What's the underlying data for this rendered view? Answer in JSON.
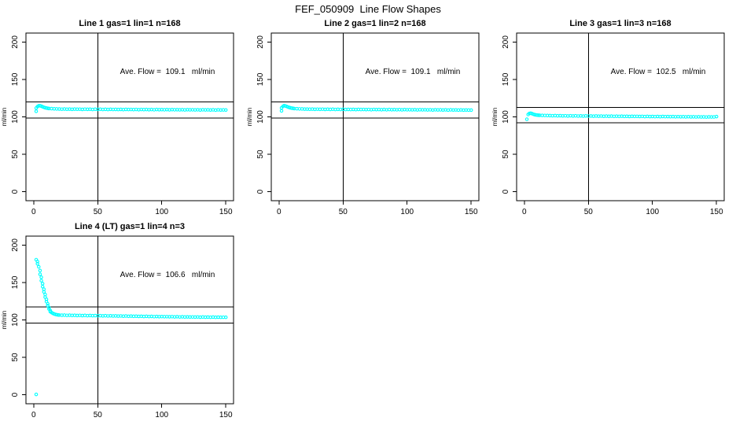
{
  "title": "FEF_050909  Line Flow Shapes",
  "colors": {
    "point": "#00FFFF",
    "axis": "#000000",
    "background": "#FFFFFF"
  },
  "chart_data": [
    {
      "type": "scatter",
      "title": "Line 1 gas=1 lin=1 n=168",
      "line": "Line 1",
      "gas": 1,
      "lin": 1,
      "n": 168,
      "annotation": "Ave. Flow =  109.1   ml/min",
      "ave_flow_ml_min": 109.1,
      "ylabel": "ml/min",
      "x_ticks": [
        0,
        50,
        100,
        150
      ],
      "y_ticks": [
        0,
        50,
        100,
        150,
        200
      ],
      "xlim": [
        -6,
        156
      ],
      "ylim": [
        -12,
        212
      ],
      "vline": 50,
      "hlines": [
        120.0,
        98.2
      ],
      "grid": false,
      "legend": null,
      "points": [
        [
          2,
          107.5
        ],
        [
          2,
          111.8
        ],
        [
          3,
          113.8
        ],
        [
          4,
          114.8
        ],
        [
          5,
          114.9
        ],
        [
          6,
          114.3
        ],
        [
          7,
          113.5
        ],
        [
          8,
          112.8
        ],
        [
          9,
          112.2
        ],
        [
          10,
          111.8
        ],
        [
          11,
          111.5
        ],
        [
          12,
          111.2
        ],
        [
          14,
          111
        ],
        [
          16,
          110.8
        ],
        [
          18,
          110.6
        ],
        [
          20,
          110.5
        ],
        [
          22,
          110.3
        ],
        [
          24,
          110.5
        ],
        [
          26,
          110.2
        ],
        [
          28,
          110.4
        ],
        [
          30,
          110.1
        ],
        [
          32,
          110.4
        ],
        [
          34,
          110.2
        ],
        [
          36,
          110.3
        ],
        [
          38,
          110
        ],
        [
          40,
          110.3
        ],
        [
          42,
          110.1
        ],
        [
          44,
          110.2
        ],
        [
          46,
          109.9
        ],
        [
          48,
          110.2
        ],
        [
          50,
          110
        ],
        [
          52,
          110.2
        ],
        [
          54,
          109.9
        ],
        [
          56,
          110.1
        ],
        [
          58,
          109.8
        ],
        [
          60,
          110.1
        ],
        [
          62,
          109.9
        ],
        [
          64,
          110
        ],
        [
          66,
          109.8
        ],
        [
          68,
          110
        ],
        [
          70,
          109.7
        ],
        [
          72,
          110
        ],
        [
          74,
          109.8
        ],
        [
          76,
          109.9
        ],
        [
          78,
          109.7
        ],
        [
          80,
          109.9
        ],
        [
          82,
          109.6
        ],
        [
          84,
          109.9
        ],
        [
          86,
          109.7
        ],
        [
          88,
          109.8
        ],
        [
          90,
          109.6
        ],
        [
          92,
          109.8
        ],
        [
          94,
          109.5
        ],
        [
          96,
          109.8
        ],
        [
          98,
          109.6
        ],
        [
          100,
          109.7
        ],
        [
          102,
          109.5
        ],
        [
          104,
          109.7
        ],
        [
          106,
          109.4
        ],
        [
          108,
          109.7
        ],
        [
          110,
          109.5
        ],
        [
          112,
          109.6
        ],
        [
          114,
          109.4
        ],
        [
          116,
          109.6
        ],
        [
          118,
          109.3
        ],
        [
          120,
          109.6
        ],
        [
          122,
          109.4
        ],
        [
          124,
          109.5
        ],
        [
          126,
          109.3
        ],
        [
          128,
          109.5
        ],
        [
          130,
          109.2
        ],
        [
          132,
          109.5
        ],
        [
          134,
          109.3
        ],
        [
          136,
          109.4
        ],
        [
          138,
          109.2
        ],
        [
          140,
          109.4
        ],
        [
          142,
          109.1
        ],
        [
          144,
          109.4
        ],
        [
          146,
          109.2
        ],
        [
          148,
          109.3
        ],
        [
          150,
          109.2
        ]
      ]
    },
    {
      "type": "scatter",
      "title": "Line 2 gas=1 lin=2 n=168",
      "line": "Line 2",
      "gas": 1,
      "lin": 2,
      "n": 168,
      "annotation": "Ave. Flow =  109.1   ml/min",
      "ave_flow_ml_min": 109.1,
      "ylabel": "ml/min",
      "x_ticks": [
        0,
        50,
        100,
        150
      ],
      "y_ticks": [
        0,
        50,
        100,
        150,
        200
      ],
      "xlim": [
        -6,
        156
      ],
      "ylim": [
        -12,
        212
      ],
      "vline": 50,
      "hlines": [
        120.0,
        98.2
      ],
      "grid": false,
      "legend": null,
      "points": [
        [
          2,
          108
        ],
        [
          2,
          112
        ],
        [
          3,
          114
        ],
        [
          4,
          115
        ],
        [
          5,
          114.6
        ],
        [
          6,
          114
        ],
        [
          7,
          113.2
        ],
        [
          8,
          112.6
        ],
        [
          9,
          112.1
        ],
        [
          10,
          111.7
        ],
        [
          11,
          111.4
        ],
        [
          12,
          111.1
        ],
        [
          14,
          110.9
        ],
        [
          16,
          110.7
        ],
        [
          18,
          110.6
        ],
        [
          20,
          110.4
        ],
        [
          22,
          110.4
        ],
        [
          24,
          110.2
        ],
        [
          26,
          110.4
        ],
        [
          28,
          110.1
        ],
        [
          30,
          110.3
        ],
        [
          32,
          110.1
        ],
        [
          34,
          110.3
        ],
        [
          36,
          110
        ],
        [
          38,
          110.2
        ],
        [
          40,
          110
        ],
        [
          42,
          110.2
        ],
        [
          44,
          109.9
        ],
        [
          46,
          110.1
        ],
        [
          48,
          109.9
        ],
        [
          50,
          110.1
        ],
        [
          52,
          109.8
        ],
        [
          54,
          110
        ],
        [
          56,
          109.8
        ],
        [
          58,
          110
        ],
        [
          60,
          109.7
        ],
        [
          62,
          110
        ],
        [
          64,
          109.8
        ],
        [
          66,
          109.9
        ],
        [
          68,
          109.7
        ],
        [
          70,
          109.9
        ],
        [
          72,
          109.6
        ],
        [
          74,
          109.9
        ],
        [
          76,
          109.7
        ],
        [
          78,
          109.8
        ],
        [
          80,
          109.6
        ],
        [
          82,
          109.8
        ],
        [
          84,
          109.5
        ],
        [
          86,
          109.8
        ],
        [
          88,
          109.6
        ],
        [
          90,
          109.7
        ],
        [
          92,
          109.5
        ],
        [
          94,
          109.7
        ],
        [
          96,
          109.4
        ],
        [
          98,
          109.7
        ],
        [
          100,
          109.5
        ],
        [
          102,
          109.6
        ],
        [
          104,
          109.4
        ],
        [
          106,
          109.6
        ],
        [
          108,
          109.3
        ],
        [
          110,
          109.6
        ],
        [
          112,
          109.4
        ],
        [
          114,
          109.5
        ],
        [
          116,
          109.3
        ],
        [
          118,
          109.5
        ],
        [
          120,
          109.2
        ],
        [
          122,
          109.5
        ],
        [
          124,
          109.3
        ],
        [
          126,
          109.4
        ],
        [
          128,
          109.2
        ],
        [
          130,
          109.4
        ],
        [
          132,
          109.1
        ],
        [
          134,
          109.4
        ],
        [
          136,
          109.2
        ],
        [
          138,
          109.3
        ],
        [
          140,
          109.1
        ],
        [
          142,
          109.3
        ],
        [
          144,
          109.1
        ],
        [
          146,
          109.2
        ],
        [
          148,
          109.1
        ],
        [
          150,
          109.1
        ]
      ]
    },
    {
      "type": "scatter",
      "title": "Line 3 gas=1 lin=3 n=168",
      "line": "Line 3",
      "gas": 1,
      "lin": 3,
      "n": 168,
      "annotation": "Ave. Flow =  102.5   ml/min",
      "ave_flow_ml_min": 102.5,
      "ylabel": "ml/min",
      "x_ticks": [
        0,
        50,
        100,
        150
      ],
      "y_ticks": [
        0,
        50,
        100,
        150,
        200
      ],
      "xlim": [
        -6,
        156
      ],
      "ylim": [
        -12,
        212
      ],
      "vline": 50,
      "hlines": [
        112.8,
        92.3
      ],
      "grid": false,
      "legend": null,
      "points": [
        [
          2,
          96.8
        ],
        [
          3,
          103.2
        ],
        [
          4,
          104.6
        ],
        [
          5,
          104.9
        ],
        [
          6,
          104.3
        ],
        [
          7,
          103.6
        ],
        [
          8,
          103
        ],
        [
          9,
          102.6
        ],
        [
          10,
          102.4
        ],
        [
          11,
          102.2
        ],
        [
          12,
          102.1
        ],
        [
          14,
          102
        ],
        [
          16,
          101.9
        ],
        [
          18,
          101.8
        ],
        [
          20,
          101.7
        ],
        [
          22,
          101.5
        ],
        [
          24,
          101.7
        ],
        [
          26,
          101.4
        ],
        [
          28,
          101.6
        ],
        [
          30,
          101.3
        ],
        [
          32,
          101.5
        ],
        [
          34,
          101.2
        ],
        [
          36,
          101.5
        ],
        [
          38,
          101.2
        ],
        [
          40,
          101.4
        ],
        [
          42,
          101.1
        ],
        [
          44,
          101.3
        ],
        [
          46,
          101
        ],
        [
          48,
          101.3
        ],
        [
          50,
          101.1
        ],
        [
          52,
          101.2
        ],
        [
          54,
          100.9
        ],
        [
          56,
          101.2
        ],
        [
          58,
          100.9
        ],
        [
          60,
          101.1
        ],
        [
          62,
          100.8
        ],
        [
          64,
          101
        ],
        [
          66,
          100.8
        ],
        [
          68,
          101
        ],
        [
          70,
          100.7
        ],
        [
          72,
          100.9
        ],
        [
          74,
          100.7
        ],
        [
          76,
          100.9
        ],
        [
          78,
          100.6
        ],
        [
          80,
          100.8
        ],
        [
          82,
          100.5
        ],
        [
          84,
          100.8
        ],
        [
          86,
          100.6
        ],
        [
          88,
          100.7
        ],
        [
          90,
          100.5
        ],
        [
          92,
          100.7
        ],
        [
          94,
          100.4
        ],
        [
          96,
          100.6
        ],
        [
          98,
          100.4
        ],
        [
          100,
          100.5
        ],
        [
          102,
          100.3
        ],
        [
          104,
          100.5
        ],
        [
          106,
          100.2
        ],
        [
          108,
          100.5
        ],
        [
          110,
          100.3
        ],
        [
          112,
          100.4
        ],
        [
          114,
          100.2
        ],
        [
          116,
          100.4
        ],
        [
          118,
          100.1
        ],
        [
          120,
          100.3
        ],
        [
          122,
          100.1
        ],
        [
          124,
          100.2
        ],
        [
          126,
          100
        ],
        [
          128,
          100.2
        ],
        [
          130,
          100
        ],
        [
          132,
          100.1
        ],
        [
          134,
          99.9
        ],
        [
          136,
          100.1
        ],
        [
          138,
          99.9
        ],
        [
          140,
          100
        ],
        [
          142,
          99.8
        ],
        [
          144,
          100
        ],
        [
          146,
          99.9
        ],
        [
          148,
          99.9
        ],
        [
          150,
          100.4
        ]
      ]
    },
    {
      "type": "scatter",
      "title": "Line 4 (LT) gas=1 lin=4 n=3",
      "line": "Line 4 (LT)",
      "gas": 1,
      "lin": 4,
      "n": 3,
      "annotation": "Ave. Flow =  106.6   ml/min",
      "ave_flow_ml_min": 106.6,
      "ylabel": "ml/min",
      "x_ticks": [
        0,
        50,
        100,
        150
      ],
      "y_ticks": [
        0,
        50,
        100,
        150,
        200
      ],
      "xlim": [
        -6,
        156
      ],
      "ylim": [
        -12,
        212
      ],
      "vline": 50,
      "hlines": [
        117.3,
        95.9
      ],
      "grid": false,
      "legend": null,
      "points": [
        [
          2,
          0.5
        ],
        [
          2,
          180.5
        ],
        [
          3,
          178
        ],
        [
          3,
          175
        ],
        [
          4,
          171
        ],
        [
          5,
          166
        ],
        [
          5,
          161
        ],
        [
          6,
          157
        ],
        [
          6,
          152.5
        ],
        [
          7,
          148.5
        ],
        [
          7,
          144.5
        ],
        [
          8,
          141
        ],
        [
          8,
          137.5
        ],
        [
          9,
          134
        ],
        [
          9,
          130.5
        ],
        [
          10,
          127.5
        ],
        [
          10,
          124.5
        ],
        [
          11,
          121.5
        ],
        [
          11,
          119
        ],
        [
          12,
          116.5
        ],
        [
          12,
          114.5
        ],
        [
          13,
          112.5
        ],
        [
          13,
          111
        ],
        [
          14,
          109.8
        ],
        [
          15,
          108.8
        ],
        [
          16,
          108
        ],
        [
          17,
          107.4
        ],
        [
          18,
          107
        ],
        [
          19,
          106.7
        ],
        [
          20,
          106.5
        ],
        [
          22,
          106.3
        ],
        [
          24,
          106.4
        ],
        [
          26,
          106.1
        ],
        [
          28,
          106.3
        ],
        [
          30,
          106
        ],
        [
          32,
          106.2
        ],
        [
          34,
          105.9
        ],
        [
          36,
          106.1
        ],
        [
          38,
          105.8
        ],
        [
          40,
          106
        ],
        [
          42,
          105.7
        ],
        [
          44,
          105.9
        ],
        [
          46,
          105.6
        ],
        [
          48,
          105.8
        ],
        [
          50,
          105.6
        ],
        [
          52,
          105.7
        ],
        [
          54,
          105.4
        ],
        [
          56,
          105.6
        ],
        [
          58,
          105.3
        ],
        [
          60,
          105.5
        ],
        [
          62,
          105.2
        ],
        [
          64,
          105.4
        ],
        [
          66,
          105.1
        ],
        [
          68,
          105.3
        ],
        [
          70,
          105
        ],
        [
          72,
          105.2
        ],
        [
          74,
          104.9
        ],
        [
          76,
          105.1
        ],
        [
          78,
          104.8
        ],
        [
          80,
          105
        ],
        [
          82,
          104.7
        ],
        [
          84,
          104.9
        ],
        [
          86,
          104.6
        ],
        [
          88,
          104.8
        ],
        [
          90,
          104.5
        ],
        [
          92,
          104.7
        ],
        [
          94,
          104.4
        ],
        [
          96,
          104.6
        ],
        [
          98,
          104.3
        ],
        [
          100,
          104.5
        ],
        [
          102,
          104.3
        ],
        [
          104,
          104.4
        ],
        [
          106,
          104.2
        ],
        [
          108,
          104.4
        ],
        [
          110,
          104.1
        ],
        [
          112,
          104.3
        ],
        [
          114,
          104
        ],
        [
          116,
          104.2
        ],
        [
          118,
          103.9
        ],
        [
          120,
          104.1
        ],
        [
          122,
          103.9
        ],
        [
          124,
          104
        ],
        [
          126,
          103.8
        ],
        [
          128,
          104
        ],
        [
          130,
          103.7
        ],
        [
          132,
          103.9
        ],
        [
          134,
          103.7
        ],
        [
          136,
          103.8
        ],
        [
          138,
          103.6
        ],
        [
          140,
          103.8
        ],
        [
          142,
          103.5
        ],
        [
          144,
          103.7
        ],
        [
          146,
          103.5
        ],
        [
          148,
          103.6
        ],
        [
          150,
          103.5
        ]
      ]
    }
  ]
}
